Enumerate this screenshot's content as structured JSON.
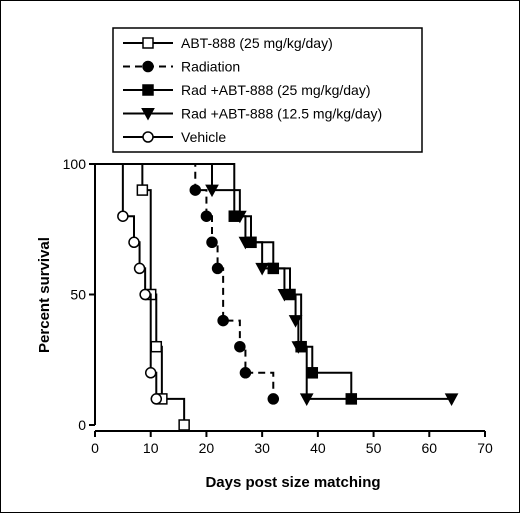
{
  "chart_data": {
    "type": "line",
    "step": true,
    "xlabel": "Days post size matching",
    "ylabel": "Percent survival",
    "xlim": [
      0,
      70
    ],
    "ylim": [
      0,
      100
    ],
    "xticks": [
      "0",
      "10",
      "20",
      "30",
      "40",
      "50",
      "60",
      "70"
    ],
    "yticks": [
      "0",
      "50",
      "100"
    ],
    "grid": false,
    "legend_placement": "top-center",
    "series": [
      {
        "name": "ABT-888 (25 mg/kg/day)",
        "marker": "open-square",
        "dash": "solid",
        "color": "#000000",
        "steps": [
          [
            0,
            100
          ],
          [
            8.5,
            90
          ],
          [
            10,
            50
          ],
          [
            11,
            30
          ],
          [
            12,
            10
          ],
          [
            16,
            0
          ]
        ]
      },
      {
        "name": "Radiation",
        "marker": "filled-circle",
        "dash": "dashed",
        "color": "#000000",
        "steps": [
          [
            0,
            100
          ],
          [
            18,
            90
          ],
          [
            20,
            80
          ],
          [
            21,
            70
          ],
          [
            22,
            60
          ],
          [
            23,
            40
          ],
          [
            26,
            30
          ],
          [
            27,
            20
          ],
          [
            32,
            10
          ]
        ]
      },
      {
        "name": "Rad +ABT-888 (25 mg/kg/day)",
        "marker": "filled-square",
        "dash": "solid",
        "color": "#000000",
        "steps": [
          [
            0,
            100
          ],
          [
            25,
            80
          ],
          [
            28,
            70
          ],
          [
            32,
            60
          ],
          [
            35,
            50
          ],
          [
            37,
            30
          ],
          [
            39,
            20
          ],
          [
            46,
            10
          ]
        ]
      },
      {
        "name": "Rad +ABT-888 (12.5 mg/kg/day)",
        "marker": "filled-triangle-down",
        "dash": "solid",
        "color": "#000000",
        "steps": [
          [
            0,
            100
          ],
          [
            21,
            90
          ],
          [
            26,
            80
          ],
          [
            27,
            70
          ],
          [
            30,
            60
          ],
          [
            34,
            50
          ],
          [
            36,
            40
          ],
          [
            36.5,
            30
          ],
          [
            38,
            10
          ],
          [
            64,
            10
          ]
        ]
      },
      {
        "name": "Vehicle",
        "marker": "open-circle",
        "dash": "solid",
        "color": "#000000",
        "steps": [
          [
            0,
            100
          ],
          [
            5,
            80
          ],
          [
            7,
            70
          ],
          [
            8,
            60
          ],
          [
            9,
            50
          ],
          [
            10,
            20
          ],
          [
            11,
            10
          ]
        ]
      }
    ]
  }
}
